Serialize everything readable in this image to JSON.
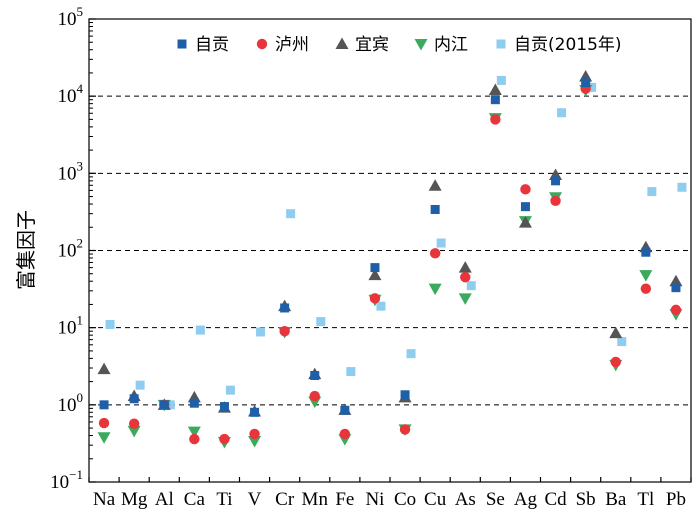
{
  "chart_data": {
    "type": "scatter",
    "ylabel": "富集因子",
    "yscale": "log",
    "ylim": [
      0.1,
      100000
    ],
    "yticks": [
      {
        "value": 0.1,
        "base": "10",
        "exp": "−1"
      },
      {
        "value": 1,
        "base": "10",
        "exp": "0"
      },
      {
        "value": 10,
        "base": "10",
        "exp": "1"
      },
      {
        "value": 100,
        "base": "10",
        "exp": "2"
      },
      {
        "value": 1000,
        "base": "10",
        "exp": "3"
      },
      {
        "value": 10000,
        "base": "10",
        "exp": "4"
      },
      {
        "value": 100000,
        "base": "10",
        "exp": "5"
      }
    ],
    "dashed_gridlines": [
      1,
      10,
      100,
      1000,
      10000
    ],
    "legend_position": "top",
    "categories": [
      "Na",
      "Mg",
      "Al",
      "Ca",
      "Ti",
      "V",
      "Cr",
      "Mn",
      "Fe",
      "Ni",
      "Co",
      "Cu",
      "As",
      "Se",
      "Ag",
      "Cd",
      "Sb",
      "Ba",
      "Tl",
      "Pb"
    ],
    "series": [
      {
        "name": "自贡",
        "marker": "square",
        "color": "#1f5fa8",
        "values": [
          1.0,
          1.2,
          1.0,
          1.05,
          0.95,
          0.8,
          18,
          2.4,
          0.85,
          60,
          1.35,
          340,
          null,
          9000,
          370,
          800,
          15000,
          null,
          95,
          33
        ]
      },
      {
        "name": "泸州",
        "marker": "circle",
        "color": "#e8343b",
        "values": [
          0.58,
          0.57,
          1.0,
          0.36,
          0.36,
          0.42,
          9,
          1.3,
          0.42,
          24,
          0.48,
          92,
          45,
          5000,
          620,
          440,
          12500,
          3.6,
          32,
          17
        ]
      },
      {
        "name": "宜宾",
        "marker": "triangle-up",
        "color": "#555555",
        "values": [
          2.9,
          1.3,
          1.0,
          1.25,
          0.92,
          0.82,
          19,
          2.5,
          0.86,
          48,
          1.25,
          690,
          60,
          12000,
          230,
          950,
          18000,
          8.5,
          110,
          40
        ]
      },
      {
        "name": "内江",
        "marker": "triangle-down",
        "color": "#3aaa5c",
        "values": [
          0.38,
          0.46,
          1.0,
          0.45,
          0.33,
          0.34,
          8.8,
          1.1,
          0.36,
          23,
          0.48,
          32,
          24,
          5200,
          240,
          490,
          12000,
          3.3,
          48,
          15
        ]
      },
      {
        "name": "自贡(2015年)",
        "marker": "square",
        "color": "#8ecdf0",
        "values": [
          11,
          1.8,
          1.0,
          9.3,
          1.55,
          8.8,
          300,
          12,
          2.7,
          19,
          4.6,
          125,
          35,
          16000,
          null,
          6100,
          13000,
          6.6,
          580,
          660
        ]
      }
    ]
  }
}
